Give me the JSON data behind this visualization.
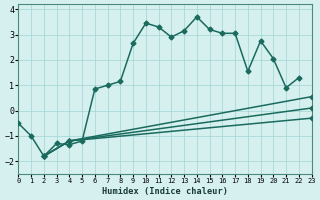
{
  "xlabel": "Humidex (Indice chaleur)",
  "ylabel": "",
  "xlim": [
    0,
    23
  ],
  "ylim": [
    -2.5,
    4.2
  ],
  "xticks": [
    0,
    1,
    2,
    3,
    4,
    5,
    6,
    7,
    8,
    9,
    10,
    11,
    12,
    13,
    14,
    15,
    16,
    17,
    18,
    19,
    20,
    21,
    22,
    23
  ],
  "yticks": [
    -2,
    -1,
    0,
    1,
    2,
    3,
    4
  ],
  "bg_color": "#d6f0f0",
  "line_color": "#1a6b5e",
  "lines": [
    {
      "x": [
        0,
        1,
        2,
        3,
        4,
        5,
        6,
        7,
        8,
        9,
        10,
        11,
        12,
        13,
        14,
        15,
        16,
        17,
        18,
        19,
        20,
        21,
        22
      ],
      "y": [
        -0.5,
        -1.0,
        -1.8,
        -1.3,
        -1.35,
        -1.2,
        0.85,
        1.0,
        1.15,
        2.65,
        3.45,
        3.3,
        2.9,
        3.15,
        3.7,
        3.2,
        3.05,
        3.05,
        1.55,
        2.75,
        2.05,
        0.9,
        1.3
      ]
    },
    {
      "x": [
        2,
        4,
        23
      ],
      "y": [
        -1.8,
        -1.2,
        0.55
      ]
    },
    {
      "x": [
        2,
        4,
        23
      ],
      "y": [
        -1.8,
        -1.2,
        0.1
      ]
    },
    {
      "x": [
        2,
        4,
        23
      ],
      "y": [
        -1.8,
        -1.2,
        -0.3
      ]
    }
  ],
  "grid_color": "#a0d4d4",
  "marker": "D",
  "markersize": 2.5,
  "linewidth": 1.1
}
